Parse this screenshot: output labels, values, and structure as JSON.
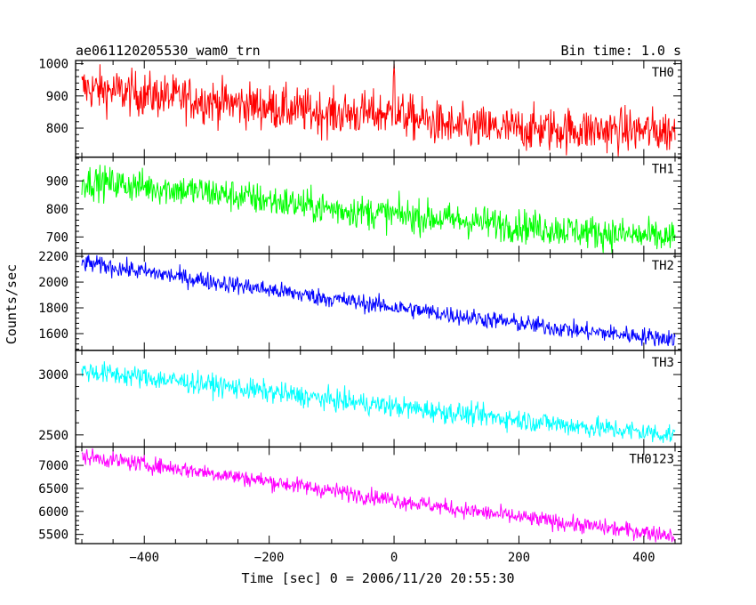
{
  "chart_data": {
    "type": "line",
    "title": "ae061120205530_wam0_trn",
    "subtitle": "Bin time: 1.0 s",
    "xlabel": "Time [sec] 0 = 2006/11/20 20:55:30",
    "ylabel": "Counts/sec",
    "xlim": [
      -510,
      460
    ],
    "x_range": [
      -500,
      450
    ],
    "x_ticks": [
      -400,
      -200,
      0,
      200,
      400
    ],
    "panels": [
      {
        "name": "TH0",
        "color": "#ff0000",
        "ylim": [
          710,
          1010
        ],
        "y_ticks": [
          800,
          900,
          1000
        ],
        "trend": [
          [
            -500,
            925
          ],
          [
            -300,
            885
          ],
          [
            -100,
            845
          ],
          [
            0,
            845
          ],
          [
            100,
            800
          ],
          [
            300,
            795
          ],
          [
            450,
            790
          ]
        ],
        "noise": 35,
        "spike": {
          "x": 0,
          "y": 1000
        }
      },
      {
        "name": "TH1",
        "color": "#00ff00",
        "ylim": [
          640,
          985
        ],
        "y_ticks": [
          700,
          800,
          900
        ],
        "trend": [
          [
            -500,
            900
          ],
          [
            -300,
            860
          ],
          [
            -100,
            800
          ],
          [
            100,
            760
          ],
          [
            300,
            720
          ],
          [
            450,
            695
          ]
        ],
        "noise": 30
      },
      {
        "name": "TH2",
        "color": "#0000ff",
        "ylim": [
          1470,
          2220
        ],
        "y_ticks": [
          1600,
          1800,
          2000,
          2200
        ],
        "trend": [
          [
            -500,
            2150
          ],
          [
            -300,
            2010
          ],
          [
            -100,
            1870
          ],
          [
            100,
            1740
          ],
          [
            300,
            1620
          ],
          [
            450,
            1560
          ]
        ],
        "noise": 35
      },
      {
        "name": "TH3",
        "color": "#00ffff",
        "ylim": [
          2400,
          3200
        ],
        "y_ticks": [
          2500,
          3000
        ],
        "trend": [
          [
            -500,
            3030
          ],
          [
            -300,
            2920
          ],
          [
            -100,
            2790
          ],
          [
            100,
            2680
          ],
          [
            300,
            2570
          ],
          [
            450,
            2500
          ]
        ],
        "noise": 45
      },
      {
        "name": "TH0123",
        "color": "#ff00ff",
        "ylim": [
          5300,
          7400
        ],
        "y_ticks": [
          5500,
          6000,
          6500,
          7000
        ],
        "trend": [
          [
            -500,
            7200
          ],
          [
            -300,
            6850
          ],
          [
            -100,
            6450
          ],
          [
            100,
            6050
          ],
          [
            300,
            5700
          ],
          [
            450,
            5480
          ]
        ],
        "noise": 90
      }
    ]
  }
}
